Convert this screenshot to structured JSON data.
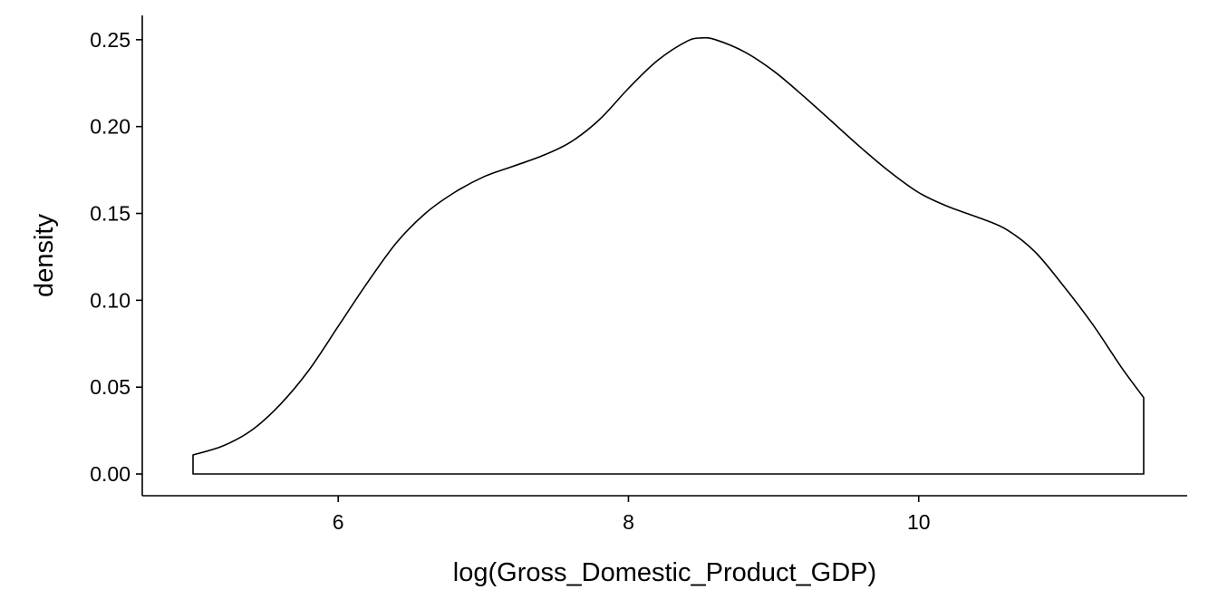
{
  "chart_data": {
    "type": "area",
    "title": "",
    "xlabel": "log(Gross_Domestic_Product_GDP)",
    "ylabel": "density",
    "xlim": [
      4.65,
      11.85
    ],
    "ylim": [
      -0.0125,
      0.264
    ],
    "x_ticks": [
      6,
      8,
      10
    ],
    "x_tick_labels": [
      "6",
      "8",
      "10"
    ],
    "y_ticks": [
      0.0,
      0.05,
      0.1,
      0.15,
      0.2,
      0.25
    ],
    "y_tick_labels": [
      "0.00",
      "0.05",
      "0.10",
      "0.15",
      "0.20",
      "0.25"
    ],
    "grid": false,
    "fill": "none",
    "line_color": "#000000",
    "series": [
      {
        "x": [
          5.0,
          5.2,
          5.4,
          5.6,
          5.8,
          6.0,
          6.2,
          6.4,
          6.6,
          6.8,
          7.0,
          7.2,
          7.4,
          7.6,
          7.8,
          8.0,
          8.2,
          8.4,
          8.5,
          8.6,
          8.8,
          9.0,
          9.2,
          9.4,
          9.6,
          9.8,
          10.0,
          10.2,
          10.4,
          10.6,
          10.8,
          11.0,
          11.2,
          11.4,
          11.55
        ],
        "y": [
          0.011,
          0.016,
          0.025,
          0.04,
          0.06,
          0.085,
          0.11,
          0.133,
          0.15,
          0.162,
          0.171,
          0.177,
          0.183,
          0.191,
          0.204,
          0.222,
          0.238,
          0.249,
          0.251,
          0.25,
          0.243,
          0.232,
          0.218,
          0.203,
          0.188,
          0.174,
          0.162,
          0.154,
          0.148,
          0.141,
          0.128,
          0.108,
          0.086,
          0.061,
          0.044
        ]
      }
    ]
  }
}
